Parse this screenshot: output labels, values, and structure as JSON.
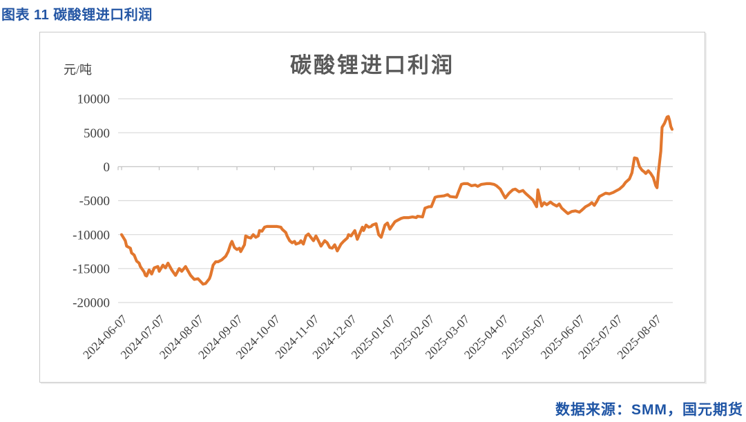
{
  "page": {
    "header_title": "图表 11 碳酸锂进口利润",
    "source_note": "数据来源：SMM，国元期货"
  },
  "colors": {
    "accent_blue": "#2456A4",
    "line_orange": "#E2772E",
    "gridline": "#D9D9D9",
    "axis_line": "#BFBFBF",
    "tick_text": "#3f3f3f",
    "title_text": "#595959"
  },
  "chart_data": {
    "type": "line",
    "title": "碳酸锂进口利润",
    "unit_label": "元/吨",
    "xlabel": "",
    "ylabel": "元/吨",
    "ylim": [
      -20000,
      10000
    ],
    "yticks": [
      10000,
      5000,
      0,
      -5000,
      -10000,
      -15000,
      -20000
    ],
    "xticks": [
      "2024-06-07",
      "2024-07-07",
      "2024-08-07",
      "2024-09-07",
      "2024-10-07",
      "2024-11-07",
      "2024-12-07",
      "2025-01-07",
      "2025-02-07",
      "2025-03-07",
      "2025-04-07",
      "2025-05-07",
      "2025-06-07",
      "2025-07-07",
      "2025-08-07"
    ],
    "x_range": [
      "2024-06-07",
      "2025-08-20"
    ],
    "grid": "horizontal",
    "legend": "none",
    "series": [
      {
        "name": "碳酸锂进口利润",
        "dates": [
          "2024-06-07",
          "2024-06-10",
          "2024-06-11",
          "2024-06-14",
          "2024-06-15",
          "2024-06-17",
          "2024-06-19",
          "2024-06-21",
          "2024-06-22",
          "2024-06-25",
          "2024-06-26",
          "2024-06-27",
          "2024-06-29",
          "2024-07-01",
          "2024-07-03",
          "2024-07-06",
          "2024-07-07",
          "2024-07-10",
          "2024-07-12",
          "2024-07-14",
          "2024-07-17",
          "2024-07-20",
          "2024-07-23",
          "2024-07-25",
          "2024-07-28",
          "2024-08-01",
          "2024-08-04",
          "2024-08-07",
          "2024-08-11",
          "2024-08-13",
          "2024-08-16",
          "2024-08-17",
          "2024-08-19",
          "2024-08-21",
          "2024-08-23",
          "2024-08-26",
          "2024-08-29",
          "2024-08-31",
          "2024-09-02",
          "2024-09-03",
          "2024-09-05",
          "2024-09-07",
          "2024-09-09",
          "2024-09-10",
          "2024-09-13",
          "2024-09-14",
          "2024-09-16",
          "2024-09-18",
          "2024-09-20",
          "2024-09-22",
          "2024-09-24",
          "2024-09-25",
          "2024-09-27",
          "2024-09-29",
          "2024-10-01",
          "2024-10-04",
          "2024-10-06",
          "2024-10-09",
          "2024-10-12",
          "2024-10-13",
          "2024-10-16",
          "2024-10-17",
          "2024-10-19",
          "2024-10-21",
          "2024-10-23",
          "2024-10-24",
          "2024-10-27",
          "2024-10-28",
          "2024-10-30",
          "2024-11-01",
          "2024-11-03",
          "2024-11-05",
          "2024-11-07",
          "2024-11-09",
          "2024-11-11",
          "2024-11-13",
          "2024-11-16",
          "2024-11-18",
          "2024-11-20",
          "2024-11-22",
          "2024-11-24",
          "2024-11-26",
          "2024-11-29",
          "2024-12-01",
          "2024-12-04",
          "2024-12-05",
          "2024-12-07",
          "2024-12-10",
          "2024-12-12",
          "2024-12-16",
          "2024-12-17",
          "2024-12-19",
          "2024-12-21",
          "2024-12-23",
          "2024-12-24",
          "2024-12-27",
          "2024-12-29",
          "2024-12-31",
          "2025-01-03",
          "2025-01-05",
          "2025-01-07",
          "2025-01-08",
          "2025-01-11",
          "2025-01-13",
          "2025-01-16",
          "2025-01-18",
          "2025-01-22",
          "2025-01-25",
          "2025-01-28",
          "2025-01-29",
          "2025-02-02",
          "2025-02-04",
          "2025-02-07",
          "2025-02-09",
          "2025-02-12",
          "2025-02-14",
          "2025-02-19",
          "2025-02-22",
          "2025-02-24",
          "2025-03-01",
          "2025-03-05",
          "2025-03-07",
          "2025-03-10",
          "2025-03-13",
          "2025-03-16",
          "2025-03-18",
          "2025-03-21",
          "2025-03-25",
          "2025-03-28",
          "2025-03-31",
          "2025-04-02",
          "2025-04-05",
          "2025-04-08",
          "2025-04-09",
          "2025-04-12",
          "2025-04-15",
          "2025-04-17",
          "2025-04-20",
          "2025-04-23",
          "2025-04-25",
          "2025-04-28",
          "2025-05-01",
          "2025-05-04",
          "2025-05-05",
          "2025-05-07",
          "2025-05-08",
          "2025-05-10",
          "2025-05-12",
          "2025-05-15",
          "2025-05-17",
          "2025-05-20",
          "2025-05-22",
          "2025-05-24",
          "2025-05-27",
          "2025-05-29",
          "2025-06-01",
          "2025-06-04",
          "2025-06-07",
          "2025-06-09",
          "2025-06-12",
          "2025-06-15",
          "2025-06-17",
          "2025-06-19",
          "2025-06-21",
          "2025-06-23",
          "2025-06-26",
          "2025-06-28",
          "2025-07-01",
          "2025-07-04",
          "2025-07-06",
          "2025-07-09",
          "2025-07-12",
          "2025-07-14",
          "2025-07-17",
          "2025-07-19",
          "2025-07-21",
          "2025-07-23",
          "2025-07-25",
          "2025-07-27",
          "2025-07-29",
          "2025-07-30",
          "2025-08-01",
          "2025-08-03",
          "2025-08-05",
          "2025-08-07",
          "2025-08-08",
          "2025-08-09",
          "2025-08-11",
          "2025-08-12",
          "2025-08-14",
          "2025-08-16",
          "2025-08-17",
          "2025-08-18",
          "2025-08-19",
          "2025-08-20"
        ],
        "values": [
          -10000,
          -10900,
          -11700,
          -12000,
          -12700,
          -13000,
          -13900,
          -14200,
          -14700,
          -15500,
          -16000,
          -16100,
          -15200,
          -15800,
          -14900,
          -14700,
          -15400,
          -14500,
          -14900,
          -14200,
          -15200,
          -16000,
          -15000,
          -15400,
          -14700,
          -16000,
          -16600,
          -16500,
          -17300,
          -17200,
          -16500,
          -16000,
          -14500,
          -14000,
          -14000,
          -13700,
          -13200,
          -12500,
          -11400,
          -11000,
          -11900,
          -12200,
          -12000,
          -12500,
          -11500,
          -10200,
          -10400,
          -10500,
          -10000,
          -10400,
          -10200,
          -9400,
          -9500,
          -8900,
          -8800,
          -8800,
          -8800,
          -8800,
          -8900,
          -9200,
          -9700,
          -10200,
          -10900,
          -11200,
          -11000,
          -11400,
          -11200,
          -10900,
          -11400,
          -10200,
          -9900,
          -10400,
          -10900,
          -10200,
          -10900,
          -11700,
          -10900,
          -11200,
          -11900,
          -12000,
          -11500,
          -12400,
          -11400,
          -11000,
          -10500,
          -10000,
          -10200,
          -9400,
          -10700,
          -8900,
          -9400,
          -8600,
          -8900,
          -8800,
          -8600,
          -8400,
          -10000,
          -10400,
          -8600,
          -8300,
          -9200,
          -8900,
          -8100,
          -7900,
          -7600,
          -7500,
          -7500,
          -7400,
          -7500,
          -7300,
          -7400,
          -6100,
          -5900,
          -5900,
          -4500,
          -4400,
          -4300,
          -4100,
          -4400,
          -4500,
          -2600,
          -2500,
          -2500,
          -2800,
          -2700,
          -2900,
          -2600,
          -2500,
          -2500,
          -2600,
          -2800,
          -3300,
          -4300,
          -4600,
          -3900,
          -3400,
          -3300,
          -3700,
          -3500,
          -3900,
          -4400,
          -4900,
          -5900,
          -3400,
          -5100,
          -5800,
          -5300,
          -5600,
          -5200,
          -5500,
          -5800,
          -5500,
          -6100,
          -6600,
          -6900,
          -6600,
          -6500,
          -6700,
          -6400,
          -5900,
          -5600,
          -5300,
          -5700,
          -5100,
          -4400,
          -4100,
          -3900,
          -4000,
          -3800,
          -3600,
          -3300,
          -2800,
          -2300,
          -1800,
          -900,
          1300,
          1200,
          0,
          -500,
          -800,
          -1000,
          -600,
          -1000,
          -1600,
          -2800,
          -3100,
          -1000,
          2300,
          5800,
          6400,
          7300,
          7400,
          6800,
          5900,
          5500
        ]
      }
    ]
  }
}
